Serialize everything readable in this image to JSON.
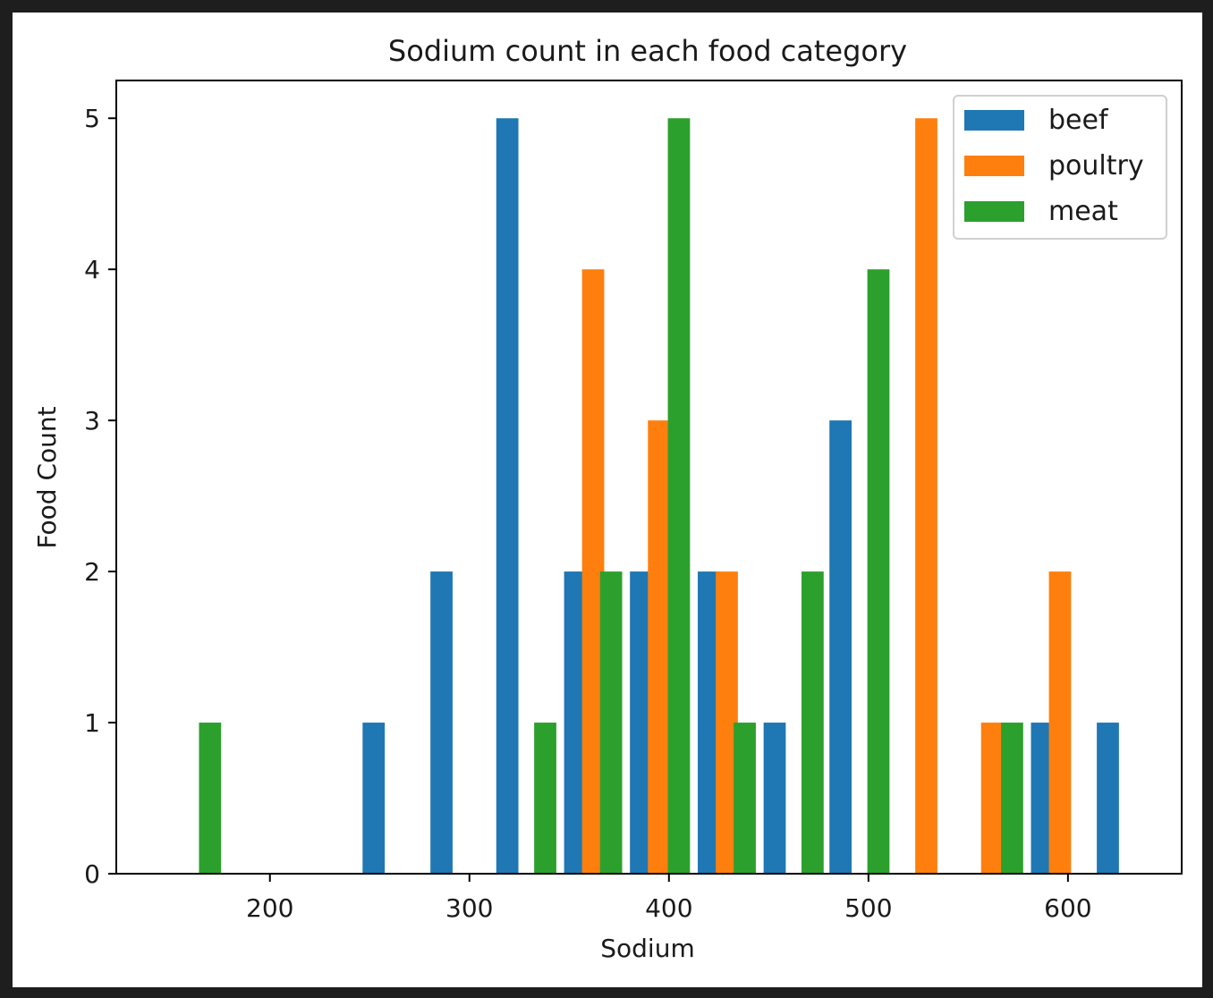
{
  "colors": {
    "page_background": "#1e1e1e",
    "figure_background": "#ffffff",
    "axis": "#000000"
  },
  "chart_data": {
    "type": "bar",
    "subtype": "grouped-histogram",
    "title": "Sodium count in each food category",
    "xlabel": "Sodium",
    "ylabel": "Food Count",
    "xlim": [
      123,
      657
    ],
    "ylim": [
      0,
      5.25
    ],
    "xticks": [
      200,
      300,
      400,
      500,
      600
    ],
    "yticks": [
      0,
      1,
      2,
      3,
      4,
      5
    ],
    "bin_width": 33.3,
    "grid": false,
    "legend_position": "top-right",
    "series": [
      {
        "name": "beef",
        "color": "#1f77b4",
        "bins": [
          {
            "x": 252,
            "count": 1
          },
          {
            "x": 286,
            "count": 2
          },
          {
            "x": 319,
            "count": 5
          },
          {
            "x": 353,
            "count": 2
          },
          {
            "x": 386,
            "count": 2
          },
          {
            "x": 420,
            "count": 2
          },
          {
            "x": 453,
            "count": 1
          },
          {
            "x": 486,
            "count": 3
          },
          {
            "x": 587,
            "count": 1
          },
          {
            "x": 620,
            "count": 1
          }
        ]
      },
      {
        "name": "poultry",
        "color": "#ff7f0e",
        "bins": [
          {
            "x": 362,
            "count": 4
          },
          {
            "x": 395,
            "count": 3
          },
          {
            "x": 429,
            "count": 2
          },
          {
            "x": 529,
            "count": 5
          },
          {
            "x": 562,
            "count": 1
          },
          {
            "x": 596,
            "count": 2
          }
        ]
      },
      {
        "name": "meat",
        "color": "#2ca02c",
        "bins": [
          {
            "x": 170,
            "count": 1
          },
          {
            "x": 338,
            "count": 1
          },
          {
            "x": 371,
            "count": 2
          },
          {
            "x": 405,
            "count": 5
          },
          {
            "x": 438,
            "count": 1
          },
          {
            "x": 472,
            "count": 2
          },
          {
            "x": 505,
            "count": 4
          },
          {
            "x": 572,
            "count": 1
          }
        ]
      }
    ]
  }
}
